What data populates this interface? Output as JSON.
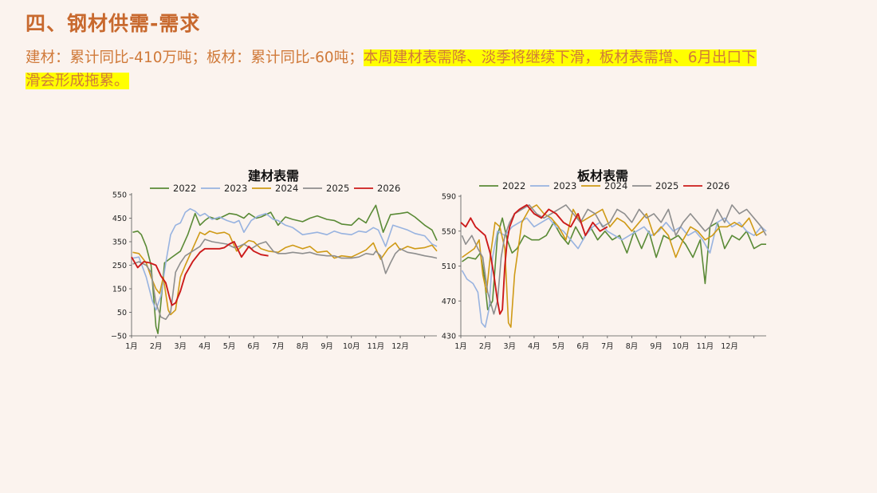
{
  "slide": {
    "title": "四、钢材供需-需求",
    "intro_plain": "建材：累计同比-410万吨；板材：累计同比-60吨；",
    "intro_highlight_1": "本周建材表需降、淡季将继续下滑，板材表需增、6月出口下",
    "intro_highlight_2": "滑会形成拖累。"
  },
  "colors": {
    "2022": "#5a8a36",
    "2023": "#98b3e0",
    "2024": "#cf9a16",
    "2025": "#8e8e8e",
    "2026": "#cc1a1a"
  },
  "chart_data": [
    {
      "type": "line",
      "title": "建材表需",
      "xlabel": "",
      "ylabel": "",
      "ylim": [
        -50,
        550
      ],
      "yticks": [
        -50,
        50,
        150,
        250,
        350,
        450,
        550
      ],
      "ytick_labels": [
        "−50",
        "50",
        "150",
        "250",
        "350",
        "450",
        "550"
      ],
      "xlim": [
        0,
        12.5
      ],
      "xticks": [
        0,
        1,
        2,
        3,
        4,
        5,
        6,
        7,
        8,
        9,
        10,
        11
      ],
      "xtick_labels": [
        "1月",
        "2月",
        "3月",
        "4月",
        "5月",
        "6月",
        "7月",
        "8月",
        "9月",
        "10月",
        "11月",
        "12月"
      ],
      "legend": "top",
      "grid": false,
      "series": [
        {
          "name": "2022",
          "x": [
            0.05,
            0.25,
            0.4,
            0.6,
            0.8,
            0.9,
            1.0,
            1.08,
            1.2,
            1.35,
            1.6,
            2.0,
            2.3,
            2.6,
            2.8,
            3.0,
            3.2,
            3.5,
            3.8,
            4.0,
            4.3,
            4.6,
            4.8,
            5.1,
            5.3,
            5.7,
            6.0,
            6.3,
            6.6,
            7.0,
            7.3,
            7.6,
            8.0,
            8.3,
            8.6,
            9.0,
            9.3,
            9.6,
            9.8,
            10.0,
            10.3,
            10.6,
            11.0,
            11.3,
            11.6,
            12.0,
            12.3,
            12.5
          ],
          "values": [
            390,
            395,
            380,
            330,
            250,
            120,
            -10,
            -40,
            90,
            260,
            280,
            310,
            380,
            470,
            420,
            440,
            455,
            445,
            460,
            470,
            465,
            450,
            470,
            450,
            455,
            475,
            420,
            455,
            445,
            435,
            450,
            460,
            445,
            440,
            425,
            420,
            450,
            430,
            470,
            505,
            390,
            465,
            470,
            475,
            455,
            420,
            400,
            355
          ]
        },
        {
          "name": "2023",
          "x": [
            0.05,
            0.3,
            0.6,
            0.85,
            1.0,
            1.2,
            1.4,
            1.6,
            1.8,
            2.0,
            2.2,
            2.4,
            2.6,
            2.8,
            3.0,
            3.3,
            3.6,
            3.9,
            4.2,
            4.4,
            4.6,
            4.9,
            5.2,
            5.5,
            5.8,
            6.0,
            6.3,
            6.6,
            7.0,
            7.3,
            7.6,
            8.0,
            8.3,
            8.6,
            9.0,
            9.3,
            9.6,
            9.9,
            10.1,
            10.4,
            10.7,
            11.0,
            11.3,
            11.6,
            12.0,
            12.3,
            12.5
          ],
          "values": [
            280,
            285,
            200,
            100,
            60,
            120,
            260,
            380,
            420,
            430,
            475,
            490,
            480,
            460,
            470,
            445,
            455,
            440,
            430,
            440,
            390,
            440,
            460,
            470,
            445,
            440,
            420,
            410,
            380,
            385,
            390,
            380,
            395,
            385,
            380,
            395,
            390,
            410,
            400,
            330,
            420,
            410,
            400,
            385,
            375,
            340,
            330
          ]
        },
        {
          "name": "2024",
          "x": [
            0.05,
            0.3,
            0.6,
            0.8,
            1.0,
            1.15,
            1.3,
            1.5,
            1.6,
            1.8,
            2.0,
            2.2,
            2.5,
            2.8,
            3.0,
            3.2,
            3.5,
            3.8,
            4.0,
            4.3,
            4.6,
            4.8,
            5.0,
            5.3,
            5.6,
            6.0,
            6.3,
            6.6,
            7.0,
            7.3,
            7.6,
            8.0,
            8.3,
            8.6,
            9.0,
            9.3,
            9.6,
            9.9,
            10.0,
            10.2,
            10.5,
            10.8,
            11.0,
            11.3,
            11.6,
            12.0,
            12.3,
            12.5
          ],
          "values": [
            305,
            300,
            260,
            200,
            150,
            130,
            200,
            60,
            40,
            60,
            200,
            250,
            320,
            390,
            380,
            395,
            385,
            390,
            380,
            310,
            340,
            355,
            350,
            320,
            310,
            305,
            325,
            335,
            320,
            330,
            305,
            310,
            280,
            290,
            285,
            300,
            315,
            345,
            320,
            275,
            320,
            345,
            315,
            330,
            320,
            325,
            335,
            310
          ]
        },
        {
          "name": "2025",
          "x": [
            0.05,
            0.3,
            0.6,
            0.8,
            1.0,
            1.2,
            1.4,
            1.6,
            1.8,
            2.0,
            2.2,
            2.5,
            2.8,
            3.0,
            3.3,
            3.6,
            3.9,
            4.2,
            4.4,
            4.6,
            4.9,
            5.2,
            5.5,
            5.8,
            6.0,
            6.3,
            6.6,
            7.0,
            7.3,
            7.6,
            8.0,
            8.3,
            8.6,
            9.0,
            9.3,
            9.6,
            9.9,
            10.0,
            10.2,
            10.4,
            10.6,
            10.8,
            11.0,
            11.3,
            11.6,
            12.0,
            12.3,
            12.5
          ],
          "values": [
            255,
            265,
            250,
            220,
            90,
            30,
            20,
            50,
            220,
            260,
            290,
            310,
            330,
            360,
            350,
            345,
            340,
            325,
            330,
            340,
            320,
            340,
            350,
            310,
            300,
            300,
            305,
            300,
            305,
            295,
            290,
            290,
            280,
            280,
            285,
            300,
            295,
            310,
            290,
            215,
            260,
            300,
            320,
            305,
            300,
            290,
            285,
            280
          ]
        },
        {
          "name": "2026",
          "x": [
            0.0,
            0.25,
            0.5,
            0.75,
            1.0,
            1.2,
            1.4,
            1.55,
            1.65,
            1.8,
            2.0,
            2.2,
            2.5,
            2.8,
            3.0,
            3.3,
            3.6,
            3.8,
            4.0,
            4.2,
            4.5,
            4.8,
            5.0,
            5.3,
            5.6
          ],
          "values": [
            285,
            240,
            265,
            260,
            250,
            205,
            175,
            115,
            80,
            90,
            140,
            210,
            265,
            305,
            320,
            320,
            320,
            325,
            340,
            350,
            285,
            330,
            310,
            295,
            290
          ]
        }
      ]
    },
    {
      "type": "line",
      "title": "板材表需",
      "xlabel": "",
      "ylabel": "",
      "ylim": [
        430,
        590
      ],
      "yticks": [
        430,
        470,
        510,
        550,
        590
      ],
      "ytick_labels": [
        "430",
        "470",
        "510",
        "550",
        "590"
      ],
      "xlim": [
        0,
        12.5
      ],
      "xticks": [
        0,
        1,
        2,
        3,
        4,
        5,
        6,
        7,
        8,
        9,
        10,
        11
      ],
      "xtick_labels": [
        "1月",
        "2月",
        "3月",
        "4月",
        "5月",
        "6月",
        "7月",
        "8月",
        "9月",
        "10月",
        "11月",
        "12月"
      ],
      "legend": "top",
      "grid": false,
      "series": [
        {
          "name": "2022",
          "x": [
            0.05,
            0.3,
            0.6,
            0.8,
            0.95,
            1.1,
            1.3,
            1.5,
            1.7,
            1.9,
            2.1,
            2.3,
            2.6,
            2.9,
            3.2,
            3.5,
            3.8,
            4.1,
            4.4,
            4.7,
            5.0,
            5.3,
            5.6,
            5.9,
            6.2,
            6.5,
            6.8,
            7.1,
            7.4,
            7.7,
            8.0,
            8.3,
            8.6,
            8.9,
            9.2,
            9.5,
            9.8,
            10.0,
            10.2,
            10.5,
            10.8,
            11.1,
            11.4,
            11.7,
            12.0,
            12.3,
            12.5
          ],
          "values": [
            515,
            520,
            518,
            525,
            500,
            460,
            470,
            545,
            565,
            540,
            525,
            530,
            545,
            540,
            540,
            545,
            560,
            545,
            535,
            555,
            540,
            555,
            540,
            550,
            540,
            545,
            525,
            550,
            530,
            550,
            520,
            545,
            540,
            545,
            535,
            520,
            540,
            490,
            555,
            560,
            530,
            545,
            540,
            550,
            530,
            535,
            535
          ]
        },
        {
          "name": "2023",
          "x": [
            0.05,
            0.25,
            0.5,
            0.7,
            0.85,
            1.0,
            1.15,
            1.3,
            1.5,
            1.8,
            2.1,
            2.4,
            2.7,
            3.0,
            3.3,
            3.6,
            3.9,
            4.2,
            4.5,
            4.8,
            5.1,
            5.4,
            5.7,
            6.0,
            6.3,
            6.6,
            6.9,
            7.2,
            7.5,
            7.8,
            8.1,
            8.4,
            8.7,
            9.0,
            9.3,
            9.6,
            9.9,
            10.2,
            10.5,
            10.8,
            11.1,
            11.4,
            11.7,
            12.0,
            12.3,
            12.5
          ],
          "values": [
            505,
            495,
            490,
            480,
            445,
            440,
            460,
            520,
            550,
            545,
            555,
            560,
            565,
            555,
            560,
            565,
            555,
            550,
            540,
            530,
            545,
            555,
            560,
            550,
            545,
            540,
            545,
            550,
            555,
            545,
            550,
            560,
            550,
            555,
            545,
            550,
            540,
            525,
            560,
            565,
            555,
            560,
            550,
            545,
            555,
            550
          ]
        },
        {
          "name": "2024",
          "x": [
            0.05,
            0.3,
            0.55,
            0.75,
            0.9,
            1.05,
            1.2,
            1.4,
            1.6,
            1.8,
            1.95,
            2.05,
            2.2,
            2.5,
            2.8,
            3.1,
            3.4,
            3.7,
            4.0,
            4.3,
            4.6,
            4.9,
            5.2,
            5.5,
            5.8,
            6.1,
            6.4,
            6.7,
            7.0,
            7.3,
            7.6,
            7.9,
            8.2,
            8.5,
            8.8,
            9.1,
            9.4,
            9.7,
            10.0,
            10.3,
            10.6,
            10.9,
            11.2,
            11.5,
            11.8,
            12.1,
            12.4
          ],
          "values": [
            520,
            525,
            530,
            540,
            500,
            480,
            520,
            560,
            555,
            530,
            445,
            440,
            500,
            560,
            575,
            580,
            570,
            565,
            555,
            540,
            575,
            560,
            565,
            570,
            575,
            555,
            565,
            560,
            550,
            560,
            570,
            545,
            555,
            545,
            520,
            540,
            555,
            550,
            540,
            545,
            555,
            555,
            560,
            555,
            565,
            545,
            550
          ]
        },
        {
          "name": "2025",
          "x": [
            0.05,
            0.2,
            0.45,
            0.7,
            0.9,
            1.0,
            1.1,
            1.2,
            1.35,
            1.5,
            1.65,
            1.8,
            2.0,
            2.2,
            2.5,
            2.8,
            3.1,
            3.4,
            3.7,
            4.0,
            4.3,
            4.6,
            4.9,
            5.2,
            5.5,
            5.8,
            6.1,
            6.4,
            6.7,
            7.0,
            7.3,
            7.6,
            7.9,
            8.2,
            8.5,
            8.8,
            9.1,
            9.4,
            9.7,
            10.0,
            10.2,
            10.5,
            10.8,
            11.1,
            11.4,
            11.7,
            12.0,
            12.3,
            12.5
          ],
          "values": [
            545,
            535,
            545,
            530,
            520,
            500,
            480,
            470,
            455,
            470,
            520,
            545,
            560,
            570,
            575,
            580,
            570,
            565,
            570,
            575,
            580,
            570,
            560,
            575,
            570,
            555,
            560,
            575,
            570,
            560,
            575,
            565,
            570,
            560,
            575,
            545,
            560,
            570,
            560,
            550,
            555,
            575,
            560,
            580,
            570,
            575,
            565,
            555,
            545
          ]
        },
        {
          "name": "2026",
          "x": [
            0.0,
            0.2,
            0.4,
            0.6,
            0.8,
            1.0,
            1.2,
            1.35,
            1.5,
            1.6,
            1.7,
            1.8,
            1.9,
            2.0,
            2.2,
            2.4,
            2.7,
            3.0,
            3.3,
            3.6,
            3.9,
            4.2,
            4.5,
            4.8,
            5.1,
            5.4,
            5.7,
            6.0
          ],
          "values": [
            560,
            555,
            565,
            555,
            550,
            545,
            525,
            500,
            470,
            455,
            460,
            510,
            540,
            555,
            570,
            575,
            580,
            570,
            565,
            575,
            570,
            560,
            555,
            570,
            545,
            560,
            550,
            555
          ]
        }
      ]
    }
  ]
}
